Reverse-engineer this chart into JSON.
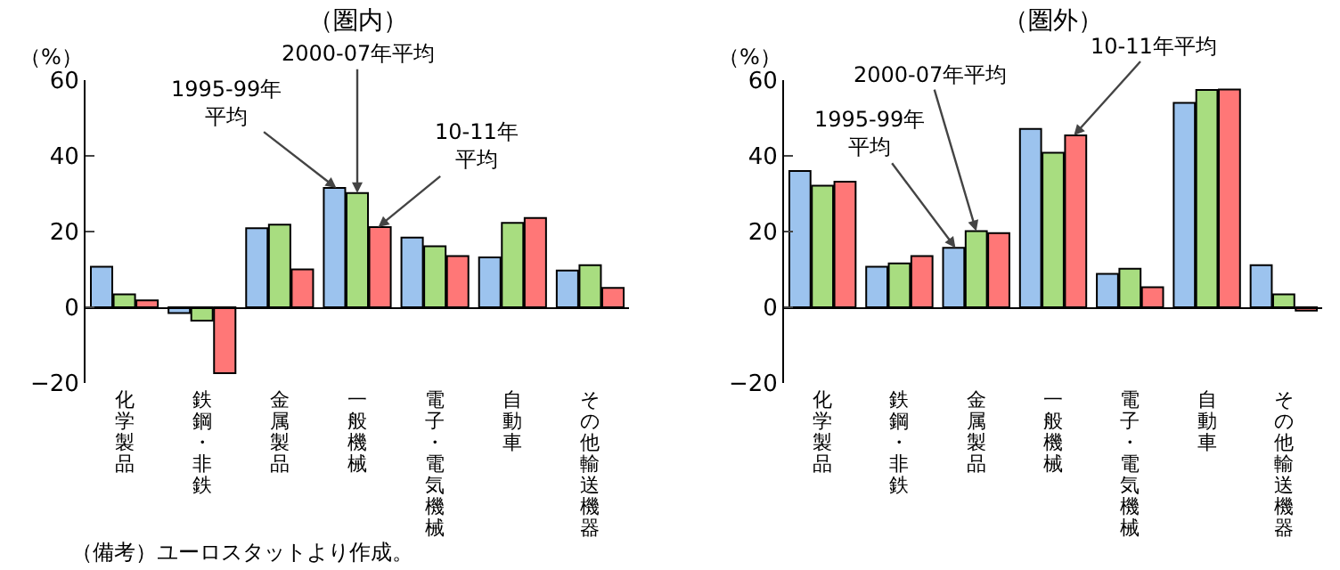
{
  "chart_data": [
    {
      "type": "bar",
      "title": "（圏内）",
      "ylabel": "（%）",
      "categories": [
        "化学製品",
        "鉄鋼・非鉄",
        "金属製品",
        "一般機械",
        "電子・電気機械",
        "自動車",
        "その他輸送機器"
      ],
      "series": [
        {
          "name": "1995-99年平均",
          "color": "#9cc3ee",
          "values": [
            10.7,
            -1.5,
            20.9,
            31.5,
            18.4,
            13.2,
            9.7
          ]
        },
        {
          "name": "2000-07年平均",
          "color": "#a8dd80",
          "values": [
            3.4,
            -3.5,
            21.8,
            30.2,
            16.1,
            22.3,
            11.1
          ]
        },
        {
          "name": "10-11年平均",
          "color": "#ff7777",
          "values": [
            1.8,
            -17.4,
            10.0,
            21.2,
            13.5,
            23.6,
            5.1
          ]
        }
      ],
      "ylim": [
        -20,
        60
      ],
      "yticks": [
        -20,
        0,
        20,
        40,
        60
      ],
      "legend": false,
      "annotations": [
        "（備考）ユーロスタットより作成。"
      ]
    },
    {
      "type": "bar",
      "title": "（圏外）",
      "ylabel": "（%）",
      "categories": [
        "化学製品",
        "鉄鋼・非鉄",
        "金属製品",
        "一般機械",
        "電子・電気機械",
        "自動車",
        "その他輸送機器"
      ],
      "series": [
        {
          "name": "1995-99年平均",
          "color": "#9cc3ee",
          "values": [
            36.0,
            10.7,
            15.7,
            47.1,
            8.8,
            54.0,
            11.1
          ]
        },
        {
          "name": "2000-07年平均",
          "color": "#a8dd80",
          "values": [
            32.1,
            11.6,
            20.1,
            40.8,
            10.2,
            57.4,
            3.4
          ]
        },
        {
          "name": "10-11年平均",
          "color": "#ff7777",
          "values": [
            33.2,
            13.5,
            19.6,
            45.4,
            5.3,
            57.5,
            -0.9
          ]
        }
      ],
      "ylim": [
        -20,
        60
      ],
      "yticks": [
        -20,
        0,
        20,
        40,
        60
      ],
      "legend": false
    }
  ]
}
